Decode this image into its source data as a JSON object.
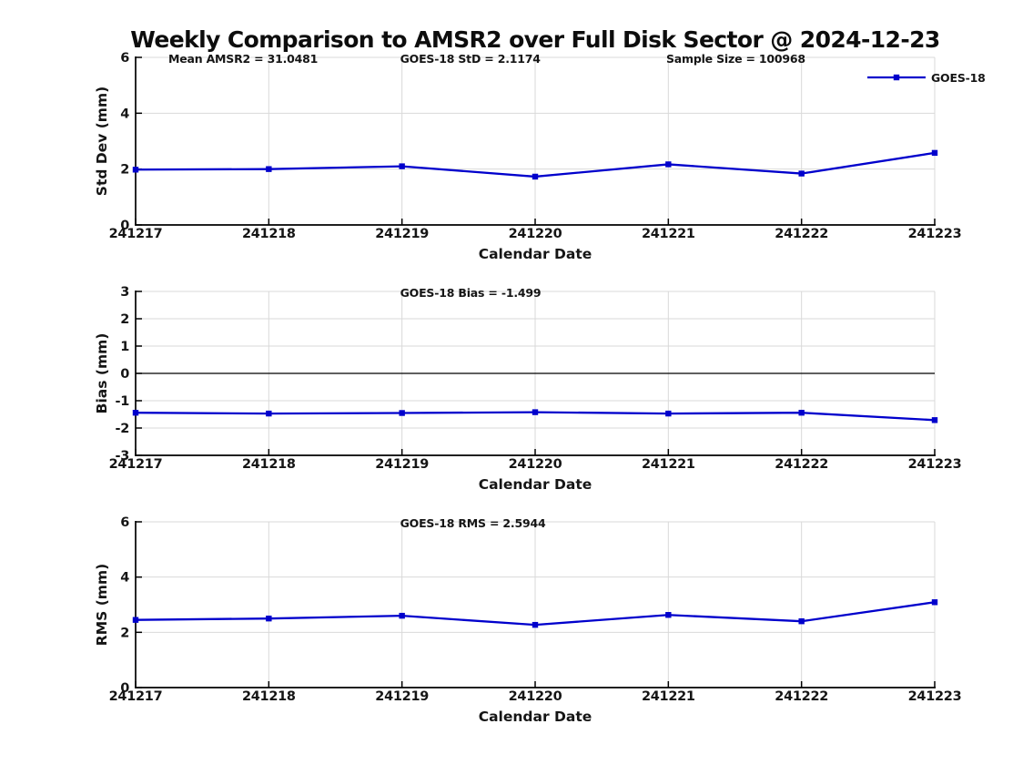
{
  "title": "Weekly Comparison to AMSR2 over Full Disk Sector @ 2024-12-23",
  "colors": {
    "line": "#0000CC",
    "marker": "#0000CC",
    "grid": "#D9D9D9",
    "axis": "#000000",
    "zero_line": "#000000",
    "text": "#151515"
  },
  "legend": {
    "label": "GOES-18",
    "position": "top-right-first-subplot"
  },
  "chart_data": [
    {
      "type": "line",
      "name": "std_dev",
      "annotations": [
        "Mean AMSR2 = 31.0481",
        "GOES-18 StD = 2.1174",
        "Sample Size = 100968"
      ],
      "x": [
        "241217",
        "241218",
        "241219",
        "241220",
        "241221",
        "241222",
        "241223"
      ],
      "series": [
        {
          "name": "GOES-18",
          "values": [
            1.98,
            2.0,
            2.1,
            1.73,
            2.17,
            1.84,
            2.58
          ]
        }
      ],
      "xlabel": "Calendar Date",
      "ylabel": "Std Dev (mm)",
      "ylim": [
        0,
        6
      ],
      "yticks": [
        0,
        2,
        4,
        6
      ],
      "ytick_labels": [
        "0",
        "2",
        "4",
        "6"
      ],
      "grid": true,
      "zero_line": false,
      "legend": "GOES-18"
    },
    {
      "type": "line",
      "name": "bias",
      "annotations": [
        "GOES-18 Bias  = -1.499"
      ],
      "x": [
        "241217",
        "241218",
        "241219",
        "241220",
        "241221",
        "241222",
        "241223"
      ],
      "series": [
        {
          "name": "GOES-18",
          "values": [
            -1.44,
            -1.47,
            -1.45,
            -1.42,
            -1.47,
            -1.44,
            -1.71
          ]
        }
      ],
      "xlabel": "Calendar Date",
      "ylabel": "Bias (mm)",
      "ylim": [
        -3,
        3
      ],
      "yticks": [
        -3,
        -2,
        -1,
        0,
        1,
        2,
        3
      ],
      "ytick_labels": [
        "-3",
        "-2",
        "-1",
        "0",
        "1",
        "2",
        "3"
      ],
      "grid": true,
      "zero_line": true,
      "legend": null
    },
    {
      "type": "line",
      "name": "rms",
      "annotations": [
        "GOES-18 RMS = 2.5944"
      ],
      "x": [
        "241217",
        "241218",
        "241219",
        "241220",
        "241221",
        "241222",
        "241223"
      ],
      "series": [
        {
          "name": "GOES-18",
          "values": [
            2.45,
            2.5,
            2.6,
            2.27,
            2.63,
            2.4,
            3.09
          ]
        }
      ],
      "xlabel": "Calendar Date",
      "ylabel": "RMS (mm)",
      "ylim": [
        0,
        6
      ],
      "yticks": [
        0,
        2,
        4,
        6
      ],
      "ytick_labels": [
        "0",
        "2",
        "4",
        "6"
      ],
      "grid": true,
      "zero_line": false,
      "legend": null
    }
  ]
}
